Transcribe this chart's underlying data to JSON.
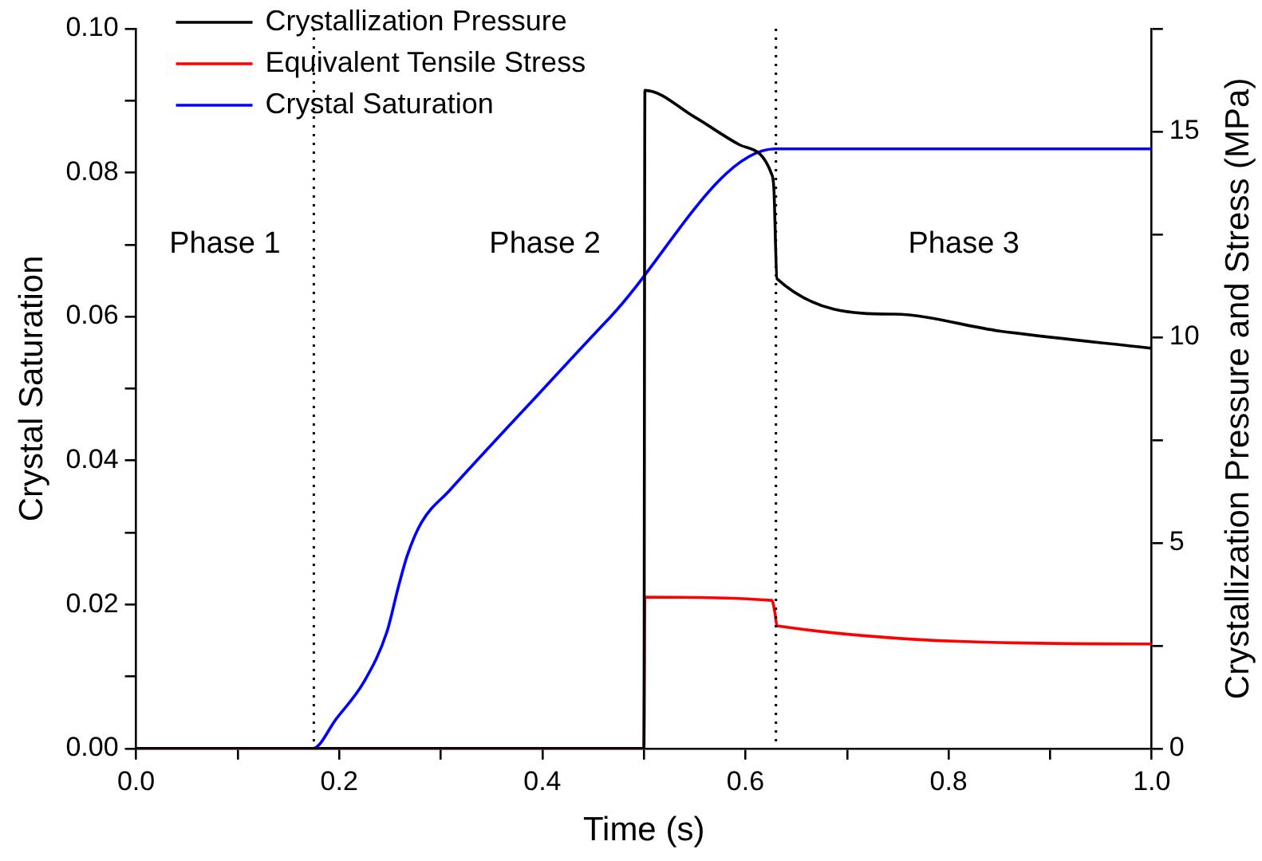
{
  "chart_data": {
    "type": "line",
    "xlabel": "Time (s)",
    "ylabel": "Crystal Saturation",
    "y2label": "Crystallization Pressure and Stress (MPa)",
    "xlim": [
      0,
      1
    ],
    "xticks": [
      {
        "value": 0,
        "label": "0.0"
      },
      {
        "value": 0.1,
        "label": null
      },
      {
        "value": 0.2,
        "label": "0.2"
      },
      {
        "value": 0.3,
        "label": null
      },
      {
        "value": 0.4,
        "label": "0.4"
      },
      {
        "value": 0.5,
        "label": null
      },
      {
        "value": 0.6,
        "label": "0.6"
      },
      {
        "value": 0.7,
        "label": null
      },
      {
        "value": 0.8,
        "label": "0.8"
      },
      {
        "value": 0.9,
        "label": null
      },
      {
        "value": 1,
        "label": "1.0"
      }
    ],
    "ylim": [
      0,
      0.1
    ],
    "yticks": [
      {
        "value": 0,
        "label": "0.00"
      },
      {
        "value": 0.01,
        "label": null
      },
      {
        "value": 0.02,
        "label": "0.02"
      },
      {
        "value": 0.03,
        "label": null
      },
      {
        "value": 0.04,
        "label": "0.04"
      },
      {
        "value": 0.05,
        "label": null
      },
      {
        "value": 0.06,
        "label": "0.06"
      },
      {
        "value": 0.07,
        "label": null
      },
      {
        "value": 0.08,
        "label": "0.08"
      },
      {
        "value": 0.09,
        "label": null
      },
      {
        "value": 0.1,
        "label": "0.10"
      }
    ],
    "y2lim": [
      0,
      17.5
    ],
    "y2ticks": [
      0,
      {
        "value": 2.5,
        "label": null
      },
      5,
      {
        "value": 7.5,
        "label": null
      },
      10,
      {
        "value": 12.5,
        "label": null
      },
      15,
      {
        "value": 17.5,
        "label": null
      }
    ],
    "series": [
      {
        "name": "Crystallization Pressure",
        "color": "#000000",
        "axis": "y2",
        "x": [
          0,
          0.5,
          0.501,
          0.55,
          0.594,
          0.626,
          0.628,
          0.631,
          0.746,
          0.85,
          1
        ],
        "values": [
          0,
          0,
          16.0,
          15.35,
          14.68,
          13.95,
          13.6,
          11.42,
          10.56,
          10.15,
          9.73
        ]
      },
      {
        "name": "Equivalent Tensile Stress",
        "color": "#ff0000",
        "axis": "y2",
        "x": [
          0,
          0.5,
          0.501,
          0.626,
          0.629,
          0.631,
          1
        ],
        "values": [
          0,
          0,
          3.68,
          3.6,
          3.3,
          2.98,
          2.54
        ]
      },
      {
        "name": "Crystal Saturation",
        "color": "#0000ff",
        "x": [
          0,
          0.174,
          0.197,
          0.225,
          0.247,
          0.258,
          0.267,
          0.281,
          0.309,
          0.398,
          0.466,
          0.629,
          1
        ],
        "values": [
          0,
          0,
          0.0041,
          0.0094,
          0.0162,
          0.0223,
          0.0268,
          0.0314,
          0.0359,
          0.0495,
          0.0598,
          0.0833,
          0.0833
        ]
      }
    ],
    "ref_lines": [
      {
        "axis": "x",
        "value": 0.175,
        "color": "#000000",
        "line_style": "dotted"
      },
      {
        "axis": "x",
        "value": 0.63,
        "color": "#000000",
        "line_style": "dotted"
      }
    ],
    "annotations": [
      "Phase 1",
      "Phase 2",
      "Phase 3"
    ],
    "legend": "top left",
    "grid": false,
    "marker": "none",
    "line_style": "solid"
  }
}
